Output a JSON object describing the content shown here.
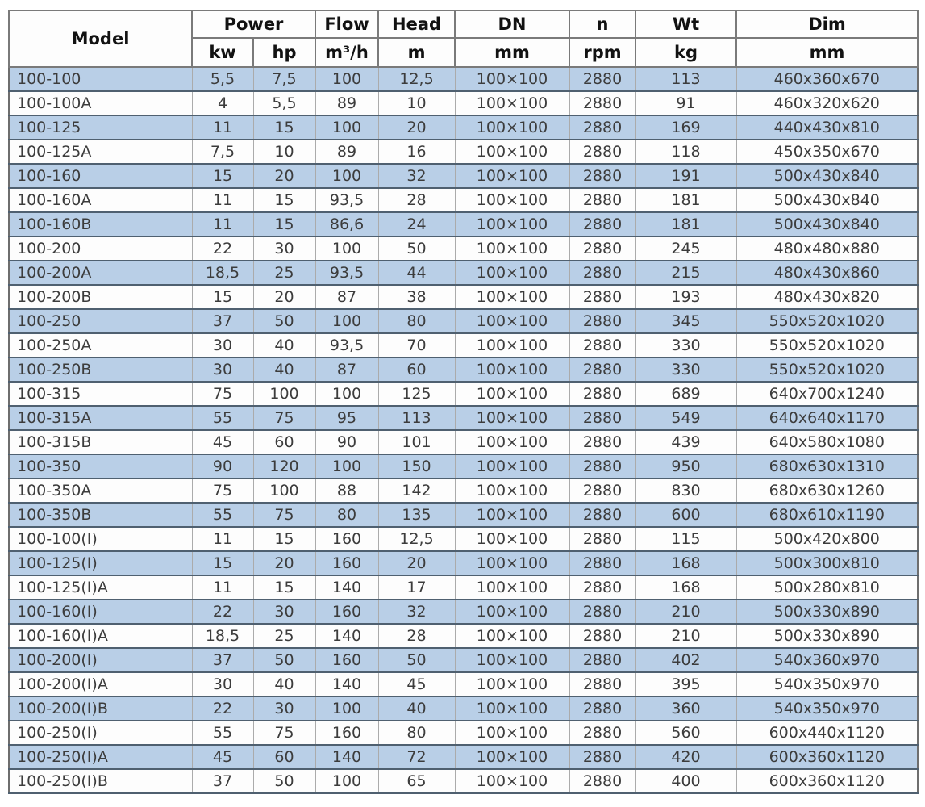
{
  "colors": {
    "row_stripe": "#b9cfe7",
    "row_plain": "#fdfdfd",
    "grid_horizontal": "#4f6070",
    "grid_vertical": "#ababab",
    "header_border": "#7a7a7a",
    "text": "#3c3c3c"
  },
  "table": {
    "header": {
      "model": "Model",
      "power": "Power",
      "flow": "Flow",
      "head": "Head",
      "dn": "DN",
      "n": "n",
      "wt": "Wt",
      "dim": "Dim",
      "units": {
        "kw": "kw",
        "hp": "hp",
        "flow": "m³/h",
        "head": "m",
        "dn": "mm",
        "n": "rpm",
        "wt": "kg",
        "dim": "mm"
      }
    },
    "rows": [
      [
        "100-100",
        "5,5",
        "7,5",
        "100",
        "12,5",
        "100×100",
        "2880",
        "113",
        "460x360x670"
      ],
      [
        "100-100A",
        "4",
        "5,5",
        "89",
        "10",
        "100×100",
        "2880",
        "91",
        "460x320x620"
      ],
      [
        "100-125",
        "11",
        "15",
        "100",
        "20",
        "100×100",
        "2880",
        "169",
        "440x430x810"
      ],
      [
        "100-125A",
        "7,5",
        "10",
        "89",
        "16",
        "100×100",
        "2880",
        "118",
        "450x350x670"
      ],
      [
        "100-160",
        "15",
        "20",
        "100",
        "32",
        "100×100",
        "2880",
        "191",
        "500x430x840"
      ],
      [
        "100-160A",
        "11",
        "15",
        "93,5",
        "28",
        "100×100",
        "2880",
        "181",
        "500x430x840"
      ],
      [
        "100-160B",
        "11",
        "15",
        "86,6",
        "24",
        "100×100",
        "2880",
        "181",
        "500x430x840"
      ],
      [
        "100-200",
        "22",
        "30",
        "100",
        "50",
        "100×100",
        "2880",
        "245",
        "480x480x880"
      ],
      [
        "100-200A",
        "18,5",
        "25",
        "93,5",
        "44",
        "100×100",
        "2880",
        "215",
        "480x430x860"
      ],
      [
        "100-200B",
        "15",
        "20",
        "87",
        "38",
        "100×100",
        "2880",
        "193",
        "480x430x820"
      ],
      [
        "100-250",
        "37",
        "50",
        "100",
        "80",
        "100×100",
        "2880",
        "345",
        "550x520x1020"
      ],
      [
        "100-250A",
        "30",
        "40",
        "93,5",
        "70",
        "100×100",
        "2880",
        "330",
        "550x520x1020"
      ],
      [
        "100-250B",
        "30",
        "40",
        "87",
        "60",
        "100×100",
        "2880",
        "330",
        "550x520x1020"
      ],
      [
        "100-315",
        "75",
        "100",
        "100",
        "125",
        "100×100",
        "2880",
        "689",
        "640x700x1240"
      ],
      [
        "100-315A",
        "55",
        "75",
        "95",
        "113",
        "100×100",
        "2880",
        "549",
        "640x640x1170"
      ],
      [
        "100-315B",
        "45",
        "60",
        "90",
        "101",
        "100×100",
        "2880",
        "439",
        "640x580x1080"
      ],
      [
        "100-350",
        "90",
        "120",
        "100",
        "150",
        "100×100",
        "2880",
        "950",
        "680x630x1310"
      ],
      [
        "100-350A",
        "75",
        "100",
        "88",
        "142",
        "100×100",
        "2880",
        "830",
        "680x630x1260"
      ],
      [
        "100-350B",
        "55",
        "75",
        "80",
        "135",
        "100×100",
        "2880",
        "600",
        "680x610x1190"
      ],
      [
        "100-100(I)",
        "11",
        "15",
        "160",
        "12,5",
        "100×100",
        "2880",
        "115",
        "500x420x800"
      ],
      [
        "100-125(I)",
        "15",
        "20",
        "160",
        "20",
        "100×100",
        "2880",
        "168",
        "500x300x810"
      ],
      [
        "100-125(I)A",
        "11",
        "15",
        "140",
        "17",
        "100×100",
        "2880",
        "168",
        "500x280x810"
      ],
      [
        "100-160(I)",
        "22",
        "30",
        "160",
        "32",
        "100×100",
        "2880",
        "210",
        "500x330x890"
      ],
      [
        "100-160(I)A",
        "18,5",
        "25",
        "140",
        "28",
        "100×100",
        "2880",
        "210",
        "500x330x890"
      ],
      [
        "100-200(I)",
        "37",
        "50",
        "160",
        "50",
        "100×100",
        "2880",
        "402",
        "540x360x970"
      ],
      [
        "100-200(I)A",
        "30",
        "40",
        "140",
        "45",
        "100×100",
        "2880",
        "395",
        "540x350x970"
      ],
      [
        "100-200(I)B",
        "22",
        "30",
        "100",
        "40",
        "100×100",
        "2880",
        "360",
        "540x350x970"
      ],
      [
        "100-250(I)",
        "55",
        "75",
        "160",
        "80",
        "100×100",
        "2880",
        "560",
        "600x440x1120"
      ],
      [
        "100-250(I)A",
        "45",
        "60",
        "140",
        "72",
        "100×100",
        "2880",
        "420",
        "600x360x1120"
      ],
      [
        "100-250(I)B",
        "37",
        "50",
        "100",
        "65",
        "100×100",
        "2880",
        "400",
        "600x360x1120"
      ]
    ]
  }
}
